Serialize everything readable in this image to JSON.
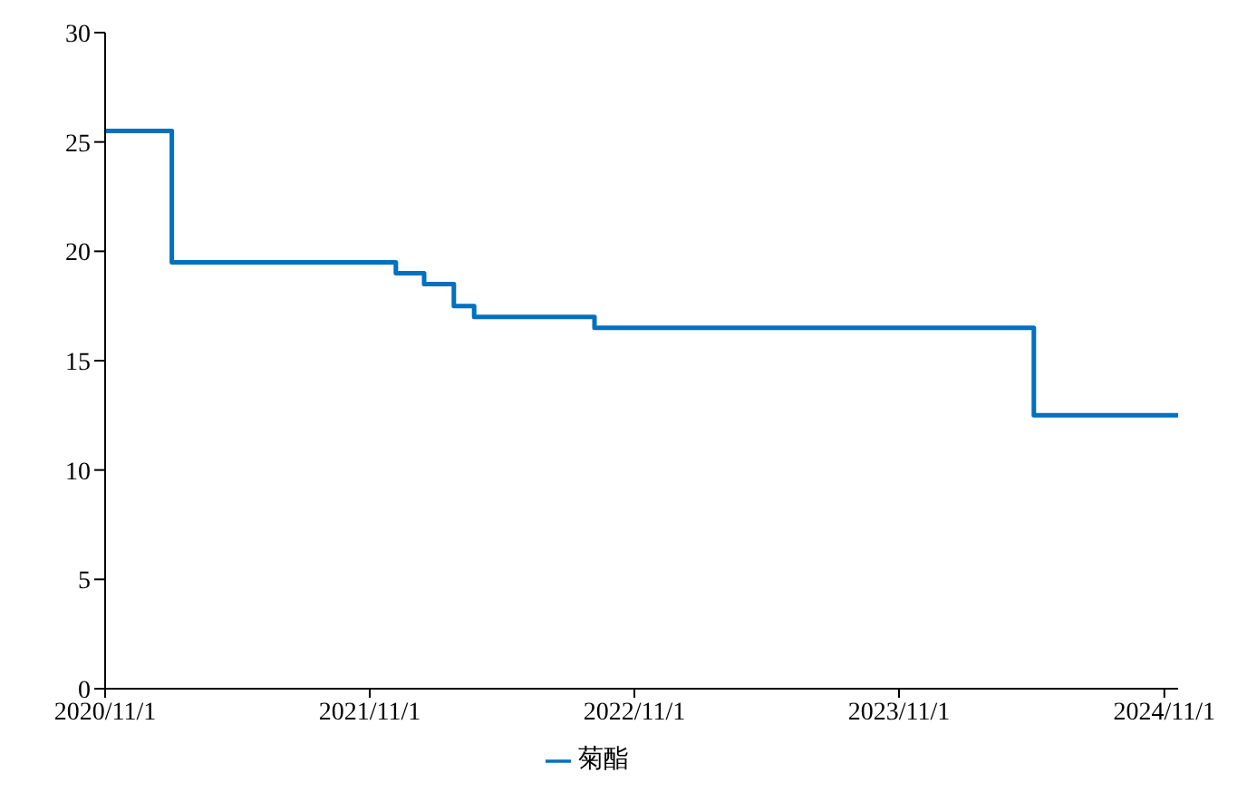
{
  "chart_data": {
    "type": "step",
    "x": [
      "2020-11-01",
      "2021-02-01",
      "2021-12-07",
      "2022-01-15",
      "2022-02-25",
      "2022-03-25",
      "2022-09-07",
      "2024-05-05",
      "2024-11-20"
    ],
    "series": [
      {
        "name": "菊酯",
        "color": "#0070c0",
        "values": [
          25.5,
          19.5,
          19,
          18.5,
          17.5,
          17,
          16.5,
          12.5,
          12.5
        ]
      }
    ],
    "xlim": [
      "2020-11-01",
      "2024-11-20"
    ],
    "xticks": [
      {
        "value": "2020-11-01",
        "label": "2020/11/1"
      },
      {
        "value": "2021-11-01",
        "label": "2021/11/1"
      },
      {
        "value": "2022-11-01",
        "label": "2022/11/1"
      },
      {
        "value": "2023-11-01",
        "label": "2023/11/1"
      },
      {
        "value": "2024-11-01",
        "label": "2024/11/1"
      }
    ],
    "ylim": [
      0,
      30
    ],
    "yticks": [
      0,
      5,
      10,
      15,
      20,
      25,
      30
    ],
    "grid": false,
    "legend": "bottom",
    "marker": "none",
    "line_style": "solid"
  }
}
